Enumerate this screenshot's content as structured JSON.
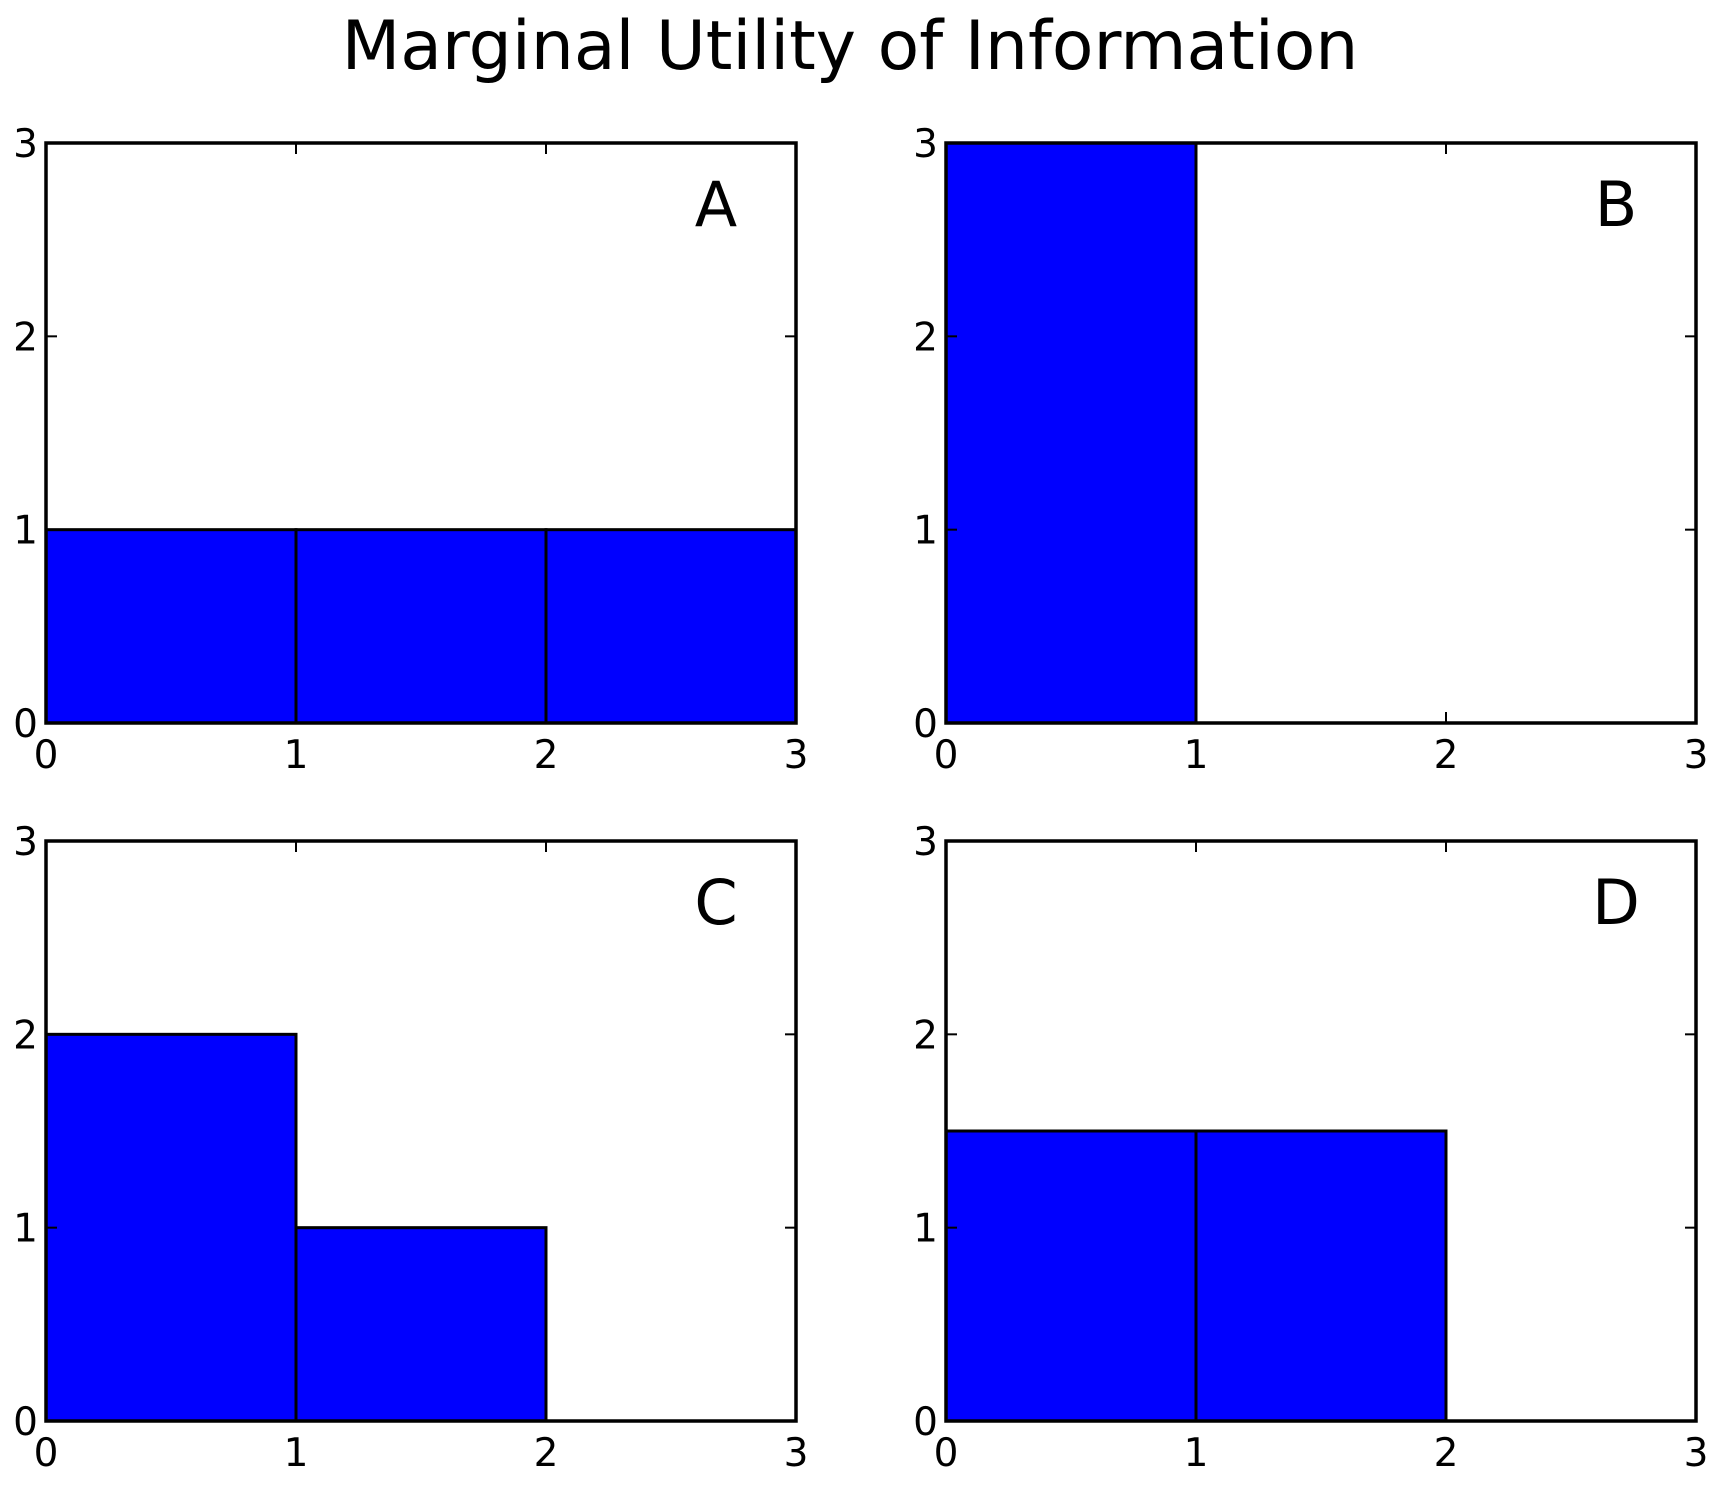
{
  "title": "Marginal Utility of Information",
  "colors": {
    "bar": "#0000ff",
    "edge": "#000000",
    "background": "#ffffff"
  },
  "chart_data": [
    {
      "type": "bar",
      "panel_label": "A",
      "x": [
        0,
        1,
        2
      ],
      "bar_width": 1,
      "values": [
        1,
        1,
        1
      ],
      "xlim": [
        0,
        3
      ],
      "ylim": [
        0,
        3
      ],
      "xticks": [
        "0",
        "1",
        "2",
        "3"
      ],
      "yticks": [
        "0",
        "1",
        "2",
        "3"
      ],
      "grid": false,
      "xlabel": "",
      "ylabel": ""
    },
    {
      "type": "bar",
      "panel_label": "B",
      "x": [
        0
      ],
      "bar_width": 1,
      "values": [
        3
      ],
      "xlim": [
        0,
        3
      ],
      "ylim": [
        0,
        3
      ],
      "xticks": [
        "0",
        "1",
        "2",
        "3"
      ],
      "yticks": [
        "0",
        "1",
        "2",
        "3"
      ],
      "grid": false,
      "xlabel": "",
      "ylabel": ""
    },
    {
      "type": "bar",
      "panel_label": "C",
      "x": [
        0,
        1
      ],
      "bar_width": 1,
      "values": [
        2,
        1
      ],
      "xlim": [
        0,
        3
      ],
      "ylim": [
        0,
        3
      ],
      "xticks": [
        "0",
        "1",
        "2",
        "3"
      ],
      "yticks": [
        "0",
        "1",
        "2",
        "3"
      ],
      "grid": false,
      "xlabel": "",
      "ylabel": ""
    },
    {
      "type": "bar",
      "panel_label": "D",
      "x": [
        0,
        1
      ],
      "bar_width": 1,
      "values": [
        1.5,
        1.5
      ],
      "xlim": [
        0,
        3
      ],
      "ylim": [
        0,
        3
      ],
      "xticks": [
        "0",
        "1",
        "2",
        "3"
      ],
      "yticks": [
        "0",
        "1",
        "2",
        "3"
      ],
      "grid": false,
      "xlabel": "",
      "ylabel": ""
    }
  ]
}
